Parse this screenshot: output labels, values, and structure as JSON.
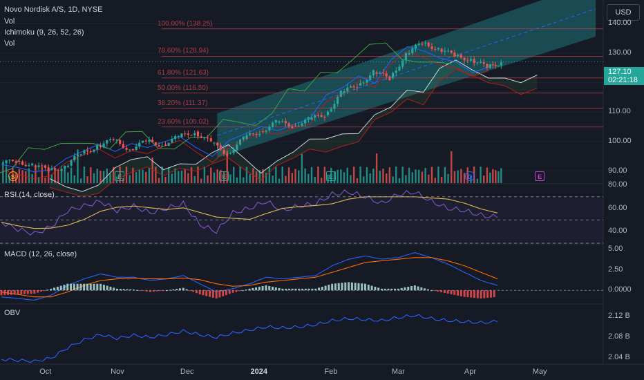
{
  "header": {
    "title": "Novo Nordisk A/S, 1D, NYSE",
    "indicators": [
      "Vol",
      "Ichimoku (9, 26, 52, 26)",
      "Vol"
    ]
  },
  "currency_button": "USD",
  "price_tag": {
    "price": "127.10",
    "timer": "02:21:18"
  },
  "fib_levels": [
    {
      "label": "100.00% (138.25)",
      "price": 138.25
    },
    {
      "label": "78.60% (128.94)",
      "price": 128.94
    },
    {
      "label": "61.80% (121.63)",
      "price": 121.63
    },
    {
      "label": "50.00% (116.50)",
      "price": 116.5
    },
    {
      "label": "38.20% (111.37)",
      "price": 111.37
    },
    {
      "label": "23.60% (105.02)",
      "price": 105.02
    }
  ],
  "price_axis_ticks": [
    "140.00",
    "130.00",
    "120.00",
    "110.00",
    "100.00",
    "90.00"
  ],
  "rsi": {
    "label": "RSI (14, close)",
    "ticks": [
      "80.00",
      "60.00",
      "40.00"
    ]
  },
  "macd": {
    "label": "MACD (12, 26, close)",
    "ticks": [
      "5.00",
      "2.50",
      "0.0000"
    ]
  },
  "obv": {
    "label": "OBV",
    "ticks": [
      "2.12 B",
      "2.08 B",
      "2.04 B"
    ]
  },
  "time_axis": [
    {
      "label": "Oct",
      "bold": false
    },
    {
      "label": "Nov",
      "bold": false
    },
    {
      "label": "Dec",
      "bold": false
    },
    {
      "label": "2024",
      "bold": true
    },
    {
      "label": "Feb",
      "bold": false
    },
    {
      "label": "Mar",
      "bold": false
    },
    {
      "label": "Apr",
      "bold": false
    },
    {
      "label": "May",
      "bold": false
    }
  ],
  "event_markers": [
    "S",
    "E",
    "E",
    "E",
    "D",
    "E"
  ],
  "colors": {
    "background": "#161a25",
    "up": "#26a69a",
    "down": "#ef5350",
    "rsi": "#7e57c2",
    "rsi_ma": "#e8c547",
    "macd": "#2962ff",
    "signal": "#ff6d00",
    "obv": "#2962ff",
    "channel": "#22a5a5",
    "tenkan": "#2962ff",
    "kijun": "#b71c1c",
    "chikou": "#43a047",
    "span": "#d1d4dc",
    "fib": "#c2414d"
  },
  "chart_data": {
    "type": "candlestick",
    "symbol": "Novo Nordisk A/S",
    "interval": "1D",
    "exchange": "NYSE",
    "y_axis_range": [
      86,
      148
    ],
    "x_range": [
      "2023-09-12",
      "2024-05-20"
    ],
    "last_price": 127.1,
    "ohlc_weekly_approx": [
      {
        "date": "2023-09-12",
        "o": 92.5,
        "h": 94.0,
        "l": 91.0,
        "c": 93.5
      },
      {
        "date": "2023-09-19",
        "o": 93.5,
        "h": 94.5,
        "l": 91.5,
        "c": 92.0
      },
      {
        "date": "2023-09-26",
        "o": 92.0,
        "h": 93.0,
        "l": 89.5,
        "c": 90.5
      },
      {
        "date": "2023-10-03",
        "o": 90.5,
        "h": 92.0,
        "l": 89.5,
        "c": 91.5
      },
      {
        "date": "2023-10-10",
        "o": 91.5,
        "h": 96.5,
        "l": 91.0,
        "c": 96.0
      },
      {
        "date": "2023-10-17",
        "o": 96.0,
        "h": 99.5,
        "l": 95.0,
        "c": 98.5
      },
      {
        "date": "2023-10-24",
        "o": 98.5,
        "h": 101.5,
        "l": 97.5,
        "c": 100.5
      },
      {
        "date": "2023-10-31",
        "o": 100.5,
        "h": 101.0,
        "l": 96.5,
        "c": 97.5
      },
      {
        "date": "2023-11-07",
        "o": 97.5,
        "h": 101.0,
        "l": 97.0,
        "c": 100.0
      },
      {
        "date": "2023-11-14",
        "o": 100.0,
        "h": 102.0,
        "l": 98.5,
        "c": 99.0
      },
      {
        "date": "2023-11-21",
        "o": 99.0,
        "h": 102.5,
        "l": 98.5,
        "c": 101.5
      },
      {
        "date": "2023-11-28",
        "o": 101.5,
        "h": 104.5,
        "l": 100.5,
        "c": 103.5
      },
      {
        "date": "2023-12-05",
        "o": 103.5,
        "h": 104.0,
        "l": 98.5,
        "c": 99.5
      },
      {
        "date": "2023-12-12",
        "o": 99.5,
        "h": 100.0,
        "l": 95.0,
        "c": 96.0
      },
      {
        "date": "2023-12-19",
        "o": 96.0,
        "h": 101.5,
        "l": 95.5,
        "c": 101.0
      },
      {
        "date": "2023-12-26",
        "o": 101.0,
        "h": 104.5,
        "l": 100.5,
        "c": 103.5
      },
      {
        "date": "2024-01-02",
        "o": 103.5,
        "h": 107.0,
        "l": 102.5,
        "c": 106.5
      },
      {
        "date": "2024-01-09",
        "o": 106.5,
        "h": 108.0,
        "l": 104.5,
        "c": 105.5
      },
      {
        "date": "2024-01-16",
        "o": 105.5,
        "h": 108.5,
        "l": 105.0,
        "c": 107.5
      },
      {
        "date": "2024-01-23",
        "o": 107.5,
        "h": 110.0,
        "l": 106.5,
        "c": 109.0
      },
      {
        "date": "2024-01-30",
        "o": 109.0,
        "h": 117.5,
        "l": 108.5,
        "c": 116.5
      },
      {
        "date": "2024-02-06",
        "o": 116.5,
        "h": 120.0,
        "l": 115.5,
        "c": 119.0
      },
      {
        "date": "2024-02-13",
        "o": 119.0,
        "h": 124.5,
        "l": 118.0,
        "c": 123.5
      },
      {
        "date": "2024-02-20",
        "o": 123.5,
        "h": 125.5,
        "l": 120.5,
        "c": 121.5
      },
      {
        "date": "2024-02-27",
        "o": 121.5,
        "h": 130.5,
        "l": 121.0,
        "c": 129.5
      },
      {
        "date": "2024-03-05",
        "o": 129.5,
        "h": 138.3,
        "l": 129.0,
        "c": 133.5
      },
      {
        "date": "2024-03-12",
        "o": 133.5,
        "h": 135.5,
        "l": 130.5,
        "c": 131.5
      },
      {
        "date": "2024-03-19",
        "o": 131.5,
        "h": 132.5,
        "l": 128.5,
        "c": 129.0
      },
      {
        "date": "2024-03-26",
        "o": 129.0,
        "h": 130.0,
        "l": 126.0,
        "c": 128.0
      },
      {
        "date": "2024-04-02",
        "o": 128.0,
        "h": 129.0,
        "l": 124.0,
        "c": 125.0
      },
      {
        "date": "2024-04-09",
        "o": 125.0,
        "h": 128.0,
        "l": 124.5,
        "c": 127.1
      }
    ],
    "rsi_14": {
      "range": [
        30,
        80
      ],
      "values_weekly_approx": [
        48,
        42,
        38,
        44,
        58,
        62,
        66,
        58,
        62,
        56,
        60,
        64,
        46,
        40,
        56,
        60,
        66,
        58,
        62,
        64,
        72,
        74,
        70,
        64,
        72,
        74,
        66,
        60,
        58,
        54,
        52
      ]
    },
    "macd": {
      "range": [
        -1.5,
        5.5
      ],
      "macd_weekly_approx": [
        -0.8,
        -1.0,
        -1.2,
        -0.6,
        0.6,
        1.4,
        2.0,
        1.6,
        1.6,
        1.2,
        1.4,
        1.8,
        0.8,
        -0.2,
        0.2,
        0.8,
        1.6,
        1.4,
        1.6,
        1.8,
        3.0,
        3.8,
        4.2,
        3.8,
        4.0,
        4.6,
        4.0,
        3.2,
        2.2,
        1.2,
        0.6
      ],
      "signal_weekly_approx": [
        -0.2,
        -0.5,
        -0.8,
        -0.8,
        -0.2,
        0.6,
        1.2,
        1.4,
        1.5,
        1.4,
        1.4,
        1.5,
        1.3,
        0.8,
        0.5,
        0.6,
        1.0,
        1.2,
        1.4,
        1.6,
        2.2,
        2.8,
        3.4,
        3.6,
        3.8,
        4.0,
        4.0,
        3.6,
        3.0,
        2.2,
        1.4
      ]
    },
    "obv": {
      "range": [
        2.03,
        2.14
      ],
      "unit": "B",
      "values_weekly_approx": [
        2.038,
        2.036,
        2.034,
        2.04,
        2.06,
        2.075,
        2.085,
        2.078,
        2.084,
        2.08,
        2.085,
        2.092,
        2.085,
        2.08,
        2.088,
        2.094,
        2.1,
        2.098,
        2.1,
        2.104,
        2.112,
        2.116,
        2.114,
        2.112,
        2.118,
        2.122,
        2.116,
        2.112,
        2.11,
        2.108,
        2.11
      ]
    }
  }
}
